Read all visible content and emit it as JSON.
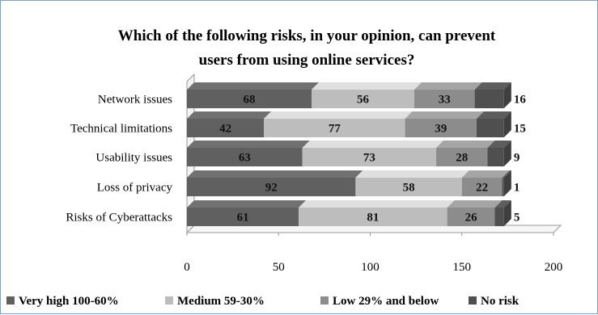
{
  "chart_data": {
    "type": "bar",
    "orientation": "horizontal",
    "stacked": true,
    "three_d": true,
    "title": "Which of the following risks, in your opinion, can prevent users from using online services?",
    "title_lines": [
      "Which of the following risks, in your opinion, can prevent",
      "users from using online services?"
    ],
    "categories": [
      "Network issues",
      "Technical limitations",
      "Usability  issues",
      "Loss of privacy",
      "Risks of Cyberattacks"
    ],
    "series": [
      {
        "name": "Very high 100-60%",
        "color": "#606060",
        "values": [
          68,
          42,
          63,
          92,
          61
        ]
      },
      {
        "name": "Medium 59-30%",
        "color": "#bdbdbd",
        "values": [
          56,
          77,
          73,
          58,
          81
        ]
      },
      {
        "name": "Low 29% and below",
        "color": "#8c8c8c",
        "values": [
          33,
          39,
          28,
          22,
          26
        ]
      },
      {
        "name": "No risk",
        "color": "#4f4f4f",
        "values": [
          16,
          15,
          9,
          1,
          5
        ]
      }
    ],
    "xlim": [
      0,
      200
    ],
    "xticks": [
      "0",
      "50",
      "100",
      "150",
      "200"
    ],
    "grid": false,
    "legend_position": "bottom"
  }
}
